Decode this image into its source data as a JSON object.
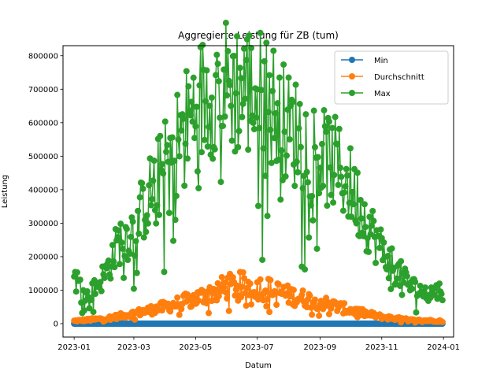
{
  "chart_data": {
    "type": "line",
    "title": "Aggregierte Leistung für ZB (tum)",
    "xlabel": "Datum",
    "ylabel": "Leistung",
    "x_range": [
      "2022-12-21",
      "2024-01-11"
    ],
    "ylim": [
      -40000,
      830000
    ],
    "x_ticks": [
      "2023-01",
      "2023-03",
      "2023-05",
      "2023-07",
      "2023-09",
      "2023-11",
      "2024-01"
    ],
    "y_ticks": [
      "0",
      "100000",
      "200000",
      "300000",
      "400000",
      "500000",
      "600000",
      "700000",
      "800000"
    ],
    "grid": false,
    "legend_position": "top-right",
    "marker": "circle",
    "x_start": "2023-01-01",
    "x_end": "2023-12-31",
    "series": [
      {
        "name": "Min",
        "color": "#1f77b4",
        "keypoints": [
          [
            "2023-01-01",
            0
          ],
          [
            "2023-12-31",
            0
          ]
        ],
        "noise": 0
      },
      {
        "name": "Durchschnitt",
        "color": "#ff7f0e",
        "keypoints": [
          [
            "2023-01-01",
            8000
          ],
          [
            "2023-02-01",
            15000
          ],
          [
            "2023-03-01",
            30000
          ],
          [
            "2023-04-01",
            50000
          ],
          [
            "2023-05-01",
            75000
          ],
          [
            "2023-06-01",
            110000
          ],
          [
            "2023-06-15",
            115000
          ],
          [
            "2023-07-01",
            110000
          ],
          [
            "2023-07-15",
            100000
          ],
          [
            "2023-08-01",
            85000
          ],
          [
            "2023-09-01",
            65000
          ],
          [
            "2023-10-01",
            40000
          ],
          [
            "2023-11-01",
            20000
          ],
          [
            "2023-12-01",
            10000
          ],
          [
            "2023-12-31",
            8000
          ]
        ],
        "noise": 0.35
      },
      {
        "name": "Max",
        "color": "#2ca02c",
        "keypoints": [
          [
            "2023-01-01",
            140000
          ],
          [
            "2023-01-15",
            80000
          ],
          [
            "2023-02-01",
            150000
          ],
          [
            "2023-02-15",
            250000
          ],
          [
            "2023-03-01",
            280000
          ],
          [
            "2023-03-15",
            380000
          ],
          [
            "2023-04-01",
            470000
          ],
          [
            "2023-04-15",
            560000
          ],
          [
            "2023-05-01",
            640000
          ],
          [
            "2023-05-15",
            700000
          ],
          [
            "2023-06-01",
            710000
          ],
          [
            "2023-06-15",
            700000
          ],
          [
            "2023-07-01",
            690000
          ],
          [
            "2023-07-15",
            660000
          ],
          [
            "2023-08-01",
            580000
          ],
          [
            "2023-08-15",
            560000
          ],
          [
            "2023-09-01",
            500000
          ],
          [
            "2023-09-15",
            480000
          ],
          [
            "2023-10-01",
            410000
          ],
          [
            "2023-10-15",
            320000
          ],
          [
            "2023-11-01",
            220000
          ],
          [
            "2023-11-15",
            160000
          ],
          [
            "2023-12-01",
            110000
          ],
          [
            "2023-12-15",
            90000
          ],
          [
            "2023-12-31",
            100000
          ]
        ],
        "noise": 0.3,
        "peak": [
          "2023-06-20",
          787000
        ]
      }
    ]
  }
}
